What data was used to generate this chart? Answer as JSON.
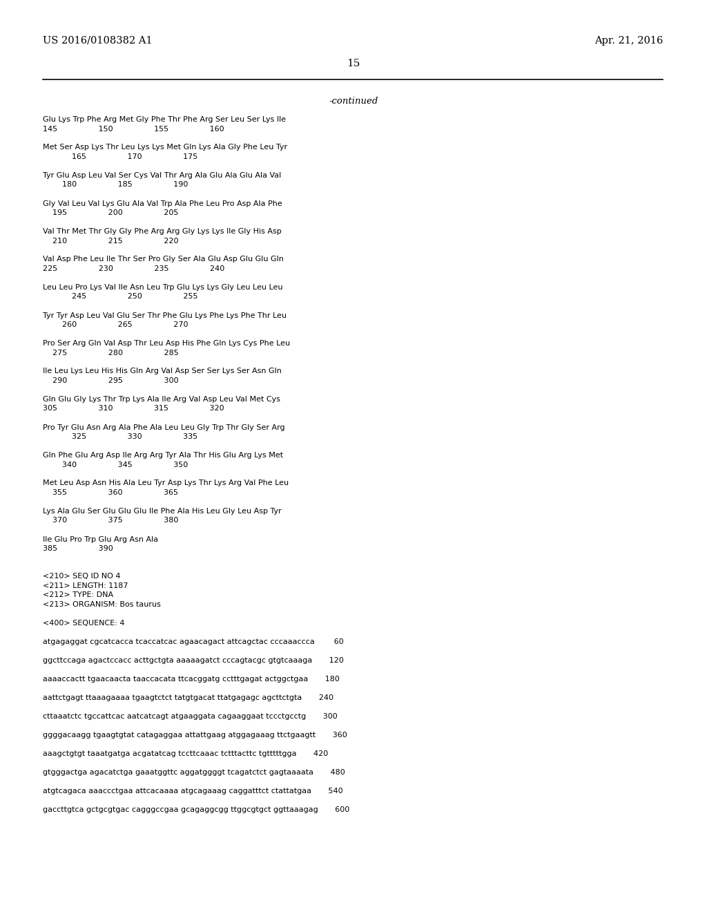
{
  "background_color": "#ffffff",
  "header_left": "US 2016/0108382 A1",
  "header_right": "Apr. 21, 2016",
  "page_number": "15",
  "continued_label": "-continued",
  "header_fontsize": 10.5,
  "page_num_fontsize": 11,
  "continued_fontsize": 9.5,
  "body_fontsize": 8.0,
  "body_lines": [
    "Glu Lys Trp Phe Arg Met Gly Phe Thr Phe Arg Ser Leu Ser Lys Ile",
    "145                 150                 155                 160",
    "",
    "Met Ser Asp Lys Thr Leu Lys Lys Met Gln Lys Ala Gly Phe Leu Tyr",
    "            165                 170                 175",
    "",
    "Tyr Glu Asp Leu Val Ser Cys Val Thr Arg Ala Glu Ala Glu Ala Val",
    "        180                 185                 190",
    "",
    "Gly Val Leu Val Lys Glu Ala Val Trp Ala Phe Leu Pro Asp Ala Phe",
    "    195                 200                 205",
    "",
    "Val Thr Met Thr Gly Gly Phe Arg Arg Gly Lys Lys Ile Gly His Asp",
    "    210                 215                 220",
    "",
    "Val Asp Phe Leu Ile Thr Ser Pro Gly Ser Ala Glu Asp Glu Glu Gln",
    "225                 230                 235                 240",
    "",
    "Leu Leu Pro Lys Val Ile Asn Leu Trp Glu Lys Lys Gly Leu Leu Leu",
    "            245                 250                 255",
    "",
    "Tyr Tyr Asp Leu Val Glu Ser Thr Phe Glu Lys Phe Lys Phe Thr Leu",
    "        260                 265                 270",
    "",
    "Pro Ser Arg Gln Val Asp Thr Leu Asp His Phe Gln Lys Cys Phe Leu",
    "    275                 280                 285",
    "",
    "Ile Leu Lys Leu His His Gln Arg Val Asp Ser Ser Lys Ser Asn Gln",
    "    290                 295                 300",
    "",
    "Gln Glu Gly Lys Thr Trp Lys Ala Ile Arg Val Asp Leu Val Met Cys",
    "305                 310                 315                 320",
    "",
    "Pro Tyr Glu Asn Arg Ala Phe Ala Leu Leu Gly Trp Thr Gly Ser Arg",
    "            325                 330                 335",
    "",
    "Gln Phe Glu Arg Asp Ile Arg Arg Tyr Ala Thr His Glu Arg Lys Met",
    "        340                 345                 350",
    "",
    "Met Leu Asp Asn His Ala Leu Tyr Asp Lys Thr Lys Arg Val Phe Leu",
    "    355                 360                 365",
    "",
    "Lys Ala Glu Ser Glu Glu Glu Ile Phe Ala His Leu Gly Leu Asp Tyr",
    "    370                 375                 380",
    "",
    "Ile Glu Pro Trp Glu Arg Asn Ala",
    "385                 390",
    "",
    "",
    "<210> SEQ ID NO 4",
    "<211> LENGTH: 1187",
    "<212> TYPE: DNA",
    "<213> ORGANISM: Bos taurus",
    "",
    "<400> SEQUENCE: 4",
    "",
    "atgagaggat cgcatcacca tcaccatcac agaacagact attcagctac cccaaaccca        60",
    "",
    "ggcttccaga agactccacc acttgctgta aaaaagatct cccagtacgc gtgtcaaaga       120",
    "",
    "aaaaccactt tgaacaacta taaccacata ttcacggatg cctttgagat actggctgaa       180",
    "",
    "aattctgagt ttaaagaaaa tgaagtctct tatgtgacat ttatgagagc agcttctgta       240",
    "",
    "cttaaatctc tgccattcac aatcatcagt atgaaggata cagaaggaat tccctgcctg       300",
    "",
    "ggggacaagg tgaagtgtat catagaggaa attattgaag atggagaaag ttctgaagtt       360",
    "",
    "aaagctgtgt taaatgatga acgatatcag tccttcaaac tctttacttc tgtttttgga       420",
    "",
    "gtgggactga agacatctga gaaatggttc aggatggggt tcagatctct gagtaaaata       480",
    "",
    "atgtcagaca aaaccctgaa attcacaaaa atgcagaaag caggatttct ctattatgaa       540",
    "",
    "gaccttgtca gctgcgtgac cagggccgaa gcagaggcgg ttggcgtgct ggttaaagag       600"
  ]
}
